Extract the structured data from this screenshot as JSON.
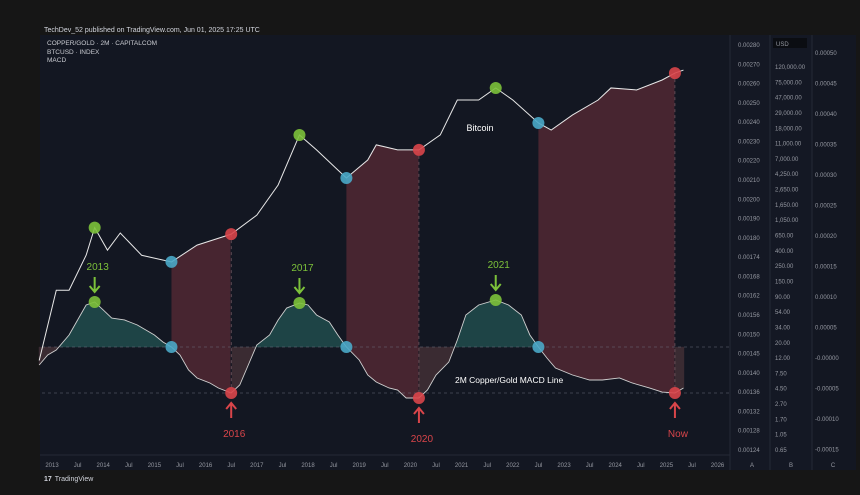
{
  "header": {
    "publisher_line": "TechDev_52 published on TradingView.com, Jun 01, 2025 17:25 UTC"
  },
  "legend": [
    "COPPER/GOLD · 2M · CAPITALCOM",
    "BTCUSD · INDEX",
    "MACD"
  ],
  "footer": {
    "logo_text": "TradingView",
    "logo_mark": "17"
  },
  "colors": {
    "background": "#131722",
    "btc_line": "#e8e8e8",
    "macd_line": "#d0d0d0",
    "bull_marker": "#7cc13a",
    "bear_marker": "#d9454a",
    "cross_marker": "#4aa8c8",
    "bear_fill": "#4a2631",
    "bull_fill": "#1f4448",
    "green_text": "#7cc13a",
    "red_text": "#d9454a"
  },
  "chart_data": {
    "type": "line",
    "title": "",
    "x_axis": {
      "type": "date",
      "range": [
        "2012-10",
        "2026-06"
      ],
      "tick_labels": [
        "2013",
        "Jul",
        "2014",
        "Jul",
        "2015",
        "Jul",
        "2016",
        "Jul",
        "2017",
        "Jul",
        "2018",
        "Jul",
        "2019",
        "Jul",
        "2020",
        "Jul",
        "2021",
        "Jul",
        "2022",
        "Jul",
        "2023",
        "Jul",
        "2024",
        "Jul",
        "2025",
        "Jul",
        "2026"
      ]
    },
    "axis_a_labels": [
      "0.00280",
      "0.00270",
      "0.00260",
      "0.00250",
      "0.00240",
      "0.00230",
      "0.00220",
      "0.00210",
      "0.00200",
      "0.00190",
      "0.00180",
      "0.00174",
      "0.00168",
      "0.00162",
      "0.00156",
      "0.00150",
      "0.00145",
      "0.00140",
      "0.00136",
      "0.00132",
      "0.00128",
      "0.00124"
    ],
    "axis_b_currency": "USD",
    "axis_b_scale": "log",
    "axis_b_labels": [
      "120,000.00",
      "75,000.00",
      "47,000.00",
      "29,000.00",
      "18,000.00",
      "11,000.00",
      "7,000.00",
      "4,250.00",
      "2,650.00",
      "1,650.00",
      "1,050.00",
      "650.00",
      "400.00",
      "250.00",
      "150.00",
      "90.00",
      "54.00",
      "34.00",
      "20.00",
      "12.00",
      "7.50",
      "4.50",
      "2.70",
      "1.70",
      "1.05",
      "0.65"
    ],
    "axis_c_labels": [
      "0.00050",
      "0.00045",
      "0.00040",
      "0.00035",
      "0.00030",
      "0.00025",
      "0.00020",
      "0.00015",
      "0.00010",
      "0.00005",
      "-0.00000",
      "-0.00005",
      "-0.00010",
      "-0.00015"
    ],
    "pane_labels": [
      "A",
      "B",
      "C"
    ],
    "series": [
      {
        "name": "Bitcoin",
        "axis": "B",
        "points": [
          [
            "2012-10",
            11
          ],
          [
            "2013-02",
            102
          ],
          [
            "2013-05",
            102
          ],
          [
            "2013-09",
            309
          ],
          [
            "2013-11",
            740
          ],
          [
            "2014-02",
            363
          ],
          [
            "2014-05",
            625
          ],
          [
            "2014-10",
            309
          ],
          [
            "2015-05",
            250
          ],
          [
            "2015-11",
            426
          ],
          [
            "2016-07",
            603
          ],
          [
            "2017-01",
            1100
          ],
          [
            "2017-06",
            2860
          ],
          [
            "2017-11",
            13950
          ],
          [
            "2018-03",
            8700
          ],
          [
            "2018-08",
            4600
          ],
          [
            "2018-10",
            3570
          ],
          [
            "2019-03",
            6300
          ],
          [
            "2019-05",
            10200
          ],
          [
            "2019-10",
            8700
          ],
          [
            "2020-03",
            8700
          ],
          [
            "2020-08",
            13950
          ],
          [
            "2020-12",
            42200
          ],
          [
            "2021-05",
            42200
          ],
          [
            "2021-09",
            61800
          ],
          [
            "2022-01",
            42200
          ],
          [
            "2022-07",
            20400
          ],
          [
            "2022-10",
            16300
          ],
          [
            "2023-03",
            26300
          ],
          [
            "2023-09",
            42200
          ],
          [
            "2023-12",
            61800
          ],
          [
            "2024-06",
            58000
          ],
          [
            "2024-12",
            79500
          ],
          [
            "2025-03",
            99000
          ],
          [
            "2025-05",
            109000
          ]
        ]
      },
      {
        "name": "2M Copper/Gold MACD Line",
        "axis": "C",
        "points": [
          [
            "2012-10",
            -2.95e-05
          ],
          [
            "2012-12",
            -1.31e-05
          ],
          [
            "2013-02",
            -4.9e-06
          ],
          [
            "2013-05",
            1.97e-05
          ],
          [
            "2013-07",
            4.43e-05
          ],
          [
            "2013-09",
            6.89e-05
          ],
          [
            "2013-11",
            7.38e-05
          ],
          [
            "2014-01",
            6.07e-05
          ],
          [
            "2014-03",
            4.75e-05
          ],
          [
            "2014-06",
            4.43e-05
          ],
          [
            "2014-09",
            3.61e-05
          ],
          [
            "2015-01",
            1.97e-05
          ],
          [
            "2015-03",
            8.2e-06
          ],
          [
            "2015-05",
            0
          ],
          [
            "2015-07",
            -1.31e-05
          ],
          [
            "2015-09",
            -3.77e-05
          ],
          [
            "2015-11",
            -5.08e-05
          ],
          [
            "2016-02",
            -5.9e-05
          ],
          [
            "2016-04",
            -6.72e-05
          ],
          [
            "2016-07",
            -7.54e-05
          ],
          [
            "2016-09",
            -6.23e-05
          ],
          [
            "2016-11",
            -2.95e-05
          ],
          [
            "2017-01",
            3.3e-06
          ],
          [
            "2017-04",
            1.97e-05
          ],
          [
            "2017-06",
            4.43e-05
          ],
          [
            "2017-08",
            6.39e-05
          ],
          [
            "2017-11",
            7.21e-05
          ],
          [
            "2018-01",
            6.89e-05
          ],
          [
            "2018-03",
            5.25e-05
          ],
          [
            "2018-06",
            4.1e-05
          ],
          [
            "2018-08",
            1.97e-05
          ],
          [
            "2018-10",
            0
          ],
          [
            "2019-01",
            -2.13e-05
          ],
          [
            "2019-03",
            -4.59e-05
          ],
          [
            "2019-05",
            -5.74e-05
          ],
          [
            "2019-08",
            -6.72e-05
          ],
          [
            "2019-10",
            -7.05e-05
          ],
          [
            "2019-12",
            -8.36e-05
          ],
          [
            "2020-03",
            -8.36e-05
          ],
          [
            "2020-05",
            -7.05e-05
          ],
          [
            "2020-07",
            -4.59e-05
          ],
          [
            "2020-10",
            -2.46e-05
          ],
          [
            "2020-12",
            1.15e-05
          ],
          [
            "2021-02",
            5.25e-05
          ],
          [
            "2021-05",
            6.89e-05
          ],
          [
            "2021-09",
            7.71e-05
          ],
          [
            "2021-12",
            6.89e-05
          ],
          [
            "2022-03",
            5.25e-05
          ],
          [
            "2022-05",
            1.97e-05
          ],
          [
            "2022-07",
            0
          ],
          [
            "2022-09",
            -1.8e-05
          ],
          [
            "2022-11",
            -3.44e-05
          ],
          [
            "2023-03",
            -4.59e-05
          ],
          [
            "2023-07",
            -5.41e-05
          ],
          [
            "2023-10",
            -5.41e-05
          ],
          [
            "2024-02",
            -5.08e-05
          ],
          [
            "2024-05",
            -5.9e-05
          ],
          [
            "2024-09",
            -6.72e-05
          ],
          [
            "2024-12",
            -7.38e-05
          ],
          [
            "2025-03",
            -7.54e-05
          ],
          [
            "2025-05",
            -6.72e-05
          ]
        ]
      }
    ],
    "signals": [
      {
        "type": "bull",
        "date": "2013-11",
        "label": "2013"
      },
      {
        "type": "cross",
        "date": "2015-05"
      },
      {
        "type": "bear",
        "date": "2016-07",
        "label": "2016"
      },
      {
        "type": "bull",
        "date": "2017-11",
        "label": "2017"
      },
      {
        "type": "cross",
        "date": "2018-10"
      },
      {
        "type": "bear",
        "date": "2020-03",
        "label": "2020"
      },
      {
        "type": "bull",
        "date": "2021-09",
        "label": "2021"
      },
      {
        "type": "cross",
        "date": "2022-07"
      },
      {
        "type": "bear",
        "date": "2025-03",
        "label": "Now"
      }
    ],
    "annotations": {
      "btc_label": "Bitcoin",
      "macd_label": "2M Copper/Gold MACD Line"
    },
    "grid": false,
    "legend": "top-left"
  }
}
